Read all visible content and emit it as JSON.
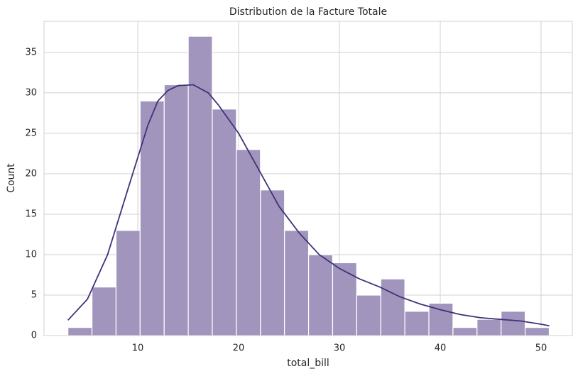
{
  "chart_data": {
    "type": "histogram",
    "title": "Distribution de la Facture Totale",
    "xlabel": "total_bill",
    "ylabel": "Count",
    "bins": [
      3.07,
      5.457,
      7.844,
      10.231,
      12.618,
      15.005,
      17.392,
      19.779,
      22.166,
      24.553,
      26.94,
      29.327,
      31.714,
      34.101,
      36.488,
      38.875,
      41.262,
      43.649,
      46.036,
      48.423,
      50.81
    ],
    "values": [
      1,
      6,
      13,
      29,
      31,
      37,
      28,
      23,
      18,
      13,
      10,
      9,
      5,
      7,
      3,
      4,
      1,
      2,
      3,
      1
    ],
    "color": "#a195bd",
    "kde": {
      "color": "#3f3278",
      "x": [
        3.07,
        5,
        7,
        9,
        10,
        11,
        12,
        13,
        14,
        15.5,
        17,
        18,
        20,
        22,
        24,
        26,
        28,
        30,
        32,
        34,
        36,
        38,
        40,
        42,
        44,
        46,
        48,
        50,
        50.81
      ],
      "values": [
        1.9,
        4.5,
        10,
        18,
        22,
        26,
        29,
        30.3,
        30.9,
        31,
        30,
        28.5,
        25,
        20.5,
        16,
        12.7,
        10,
        8.3,
        7,
        6,
        4.8,
        3.9,
        3.2,
        2.6,
        2.2,
        2.0,
        1.8,
        1.4,
        1.2
      ]
    },
    "xlim": [
      0.7,
      53.1
    ],
    "ylim": [
      0,
      38.85
    ],
    "xticks": [
      10,
      20,
      30,
      40,
      50
    ],
    "yticks": [
      0,
      5,
      10,
      15,
      20,
      25,
      30,
      35
    ],
    "grid": true
  }
}
